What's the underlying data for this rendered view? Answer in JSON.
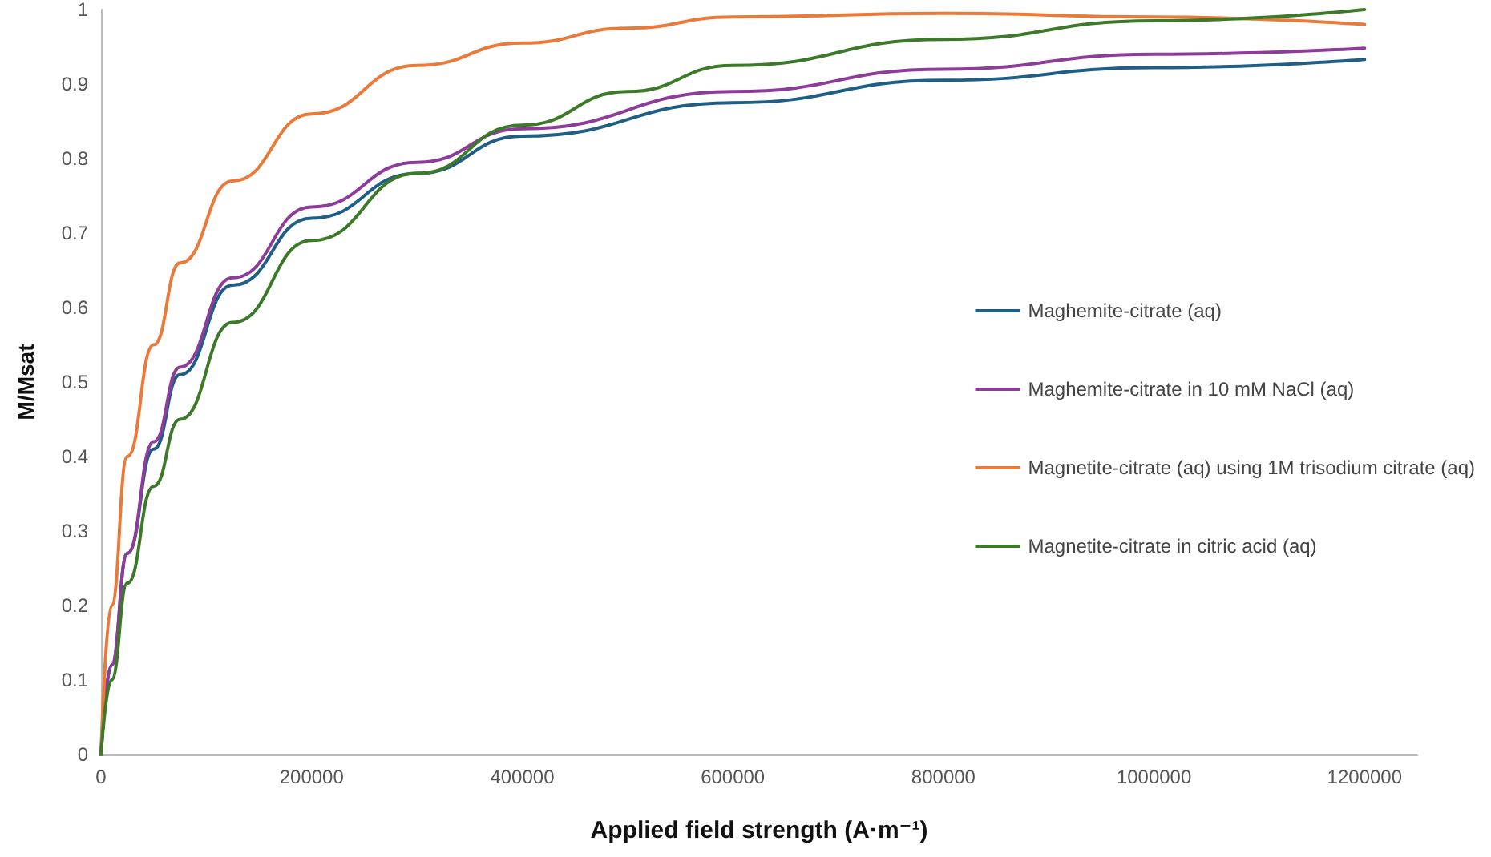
{
  "chart_data": {
    "type": "line",
    "xlabel": "Applied field strength (A·m⁻¹)",
    "ylabel": "M/Msat",
    "xlim": [
      0,
      1250000
    ],
    "xticks": [
      0,
      200000,
      400000,
      600000,
      800000,
      1000000,
      1200000
    ],
    "ylim": [
      0,
      1
    ],
    "yticks": [
      0,
      0.1,
      0.2,
      0.3,
      0.4,
      0.5,
      0.6,
      0.7,
      0.8,
      0.9,
      1
    ],
    "grid": false,
    "legend": "right",
    "marker": "none",
    "line_style": "solid",
    "series": [
      {
        "name": "Maghemite-citrate (aq)",
        "color": "#1f5f86",
        "x": [
          0,
          10000,
          25000,
          50000,
          75000,
          125000,
          200000,
          300000,
          400000,
          600000,
          800000,
          1000000,
          1200000
        ],
        "values": [
          0,
          0.12,
          0.27,
          0.41,
          0.51,
          0.63,
          0.72,
          0.78,
          0.83,
          0.875,
          0.905,
          0.922,
          0.933
        ]
      },
      {
        "name": "Maghemite-citrate in 10 mM NaCl (aq)",
        "color": "#8e3c9a",
        "x": [
          0,
          10000,
          25000,
          50000,
          75000,
          125000,
          200000,
          300000,
          400000,
          600000,
          800000,
          1000000,
          1200000
        ],
        "values": [
          0,
          0.12,
          0.27,
          0.42,
          0.52,
          0.64,
          0.735,
          0.795,
          0.84,
          0.89,
          0.92,
          0.94,
          0.948
        ]
      },
      {
        "name": "Magnetite-citrate (aq) using 1M trisodium citrate (aq)",
        "color": "#e97a3a",
        "x": [
          0,
          10000,
          25000,
          50000,
          75000,
          125000,
          200000,
          300000,
          400000,
          500000,
          600000,
          800000,
          1000000,
          1200000
        ],
        "values": [
          0,
          0.2,
          0.4,
          0.55,
          0.66,
          0.77,
          0.86,
          0.925,
          0.955,
          0.975,
          0.99,
          0.995,
          0.99,
          0.98
        ]
      },
      {
        "name": "Magnetite-citrate in citric acid (aq)",
        "color": "#3c7a2a",
        "x": [
          0,
          10000,
          25000,
          50000,
          75000,
          125000,
          200000,
          300000,
          400000,
          500000,
          600000,
          800000,
          1000000,
          1200000
        ],
        "values": [
          0,
          0.1,
          0.23,
          0.36,
          0.45,
          0.58,
          0.69,
          0.78,
          0.845,
          0.89,
          0.925,
          0.96,
          0.985,
          1
        ]
      }
    ]
  }
}
